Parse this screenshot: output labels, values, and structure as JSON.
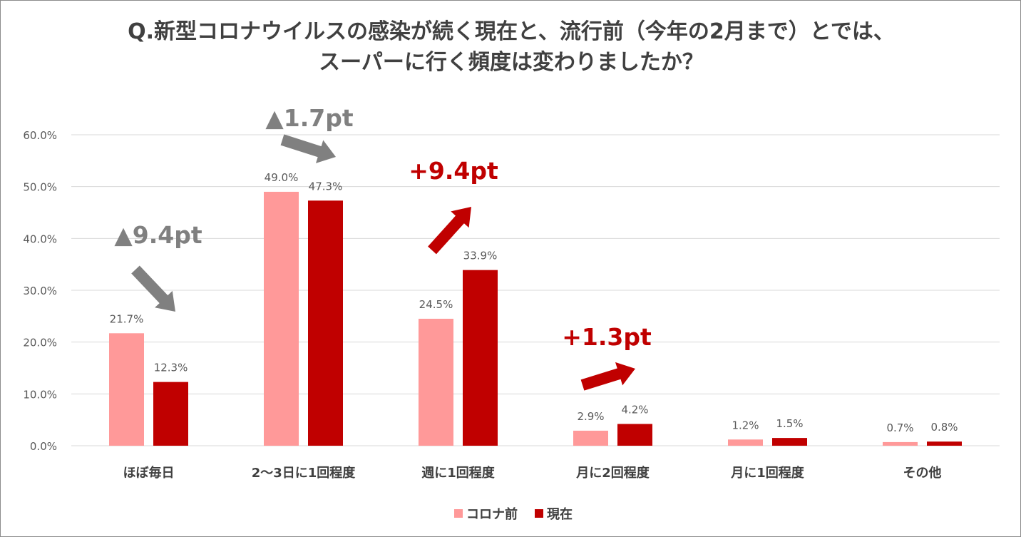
{
  "title_lines": [
    "Q.新型コロナウイルスの感染が続く現在と、流行前（今年の2月まで）とでは、",
    "スーパーに行く頻度は変わりましたか？"
  ],
  "colors": {
    "before": "#ff9999",
    "now": "#c00000",
    "decrease": "#808080",
    "increase": "#c00000",
    "grid": "#d9d9d9",
    "text": "#595959"
  },
  "chart_data": {
    "type": "bar",
    "categories": [
      "ほぼ毎日",
      "2〜3日に1回程度",
      "週に1回程度",
      "月に2回程度",
      "月に1回程度",
      "その他"
    ],
    "series": [
      {
        "name": "コロナ前",
        "values": [
          21.7,
          49.0,
          24.5,
          2.9,
          1.2,
          0.7
        ]
      },
      {
        "name": "現在",
        "values": [
          12.3,
          47.3,
          33.9,
          4.2,
          1.5,
          0.8
        ]
      }
    ],
    "data_labels": [
      [
        "21.7%",
        "49.0%",
        "24.5%",
        "2.9%",
        "1.2%",
        "0.7%"
      ],
      [
        "12.3%",
        "47.3%",
        "33.9%",
        "4.2%",
        "1.5%",
        "0.8%"
      ]
    ],
    "ylim": [
      0,
      60
    ],
    "y_ticks": [
      0,
      10,
      20,
      30,
      40,
      50,
      60
    ],
    "y_tick_labels": [
      "0.0%",
      "10.0%",
      "20.0%",
      "30.0%",
      "40.0%",
      "50.0%",
      "60.0%"
    ],
    "grid": true,
    "legend_position": "bottom",
    "legend": [
      "コロナ前",
      "現在"
    ],
    "annotations": [
      {
        "category": "ほぼ毎日",
        "text": "▲9.4pt",
        "direction": "down"
      },
      {
        "category": "2〜3日に1回程度",
        "text": "▲1.7pt",
        "direction": "down"
      },
      {
        "category": "週に1回程度",
        "text": "+9.4pt",
        "direction": "up"
      },
      {
        "category": "月に2回程度",
        "text": "+1.3pt",
        "direction": "up"
      }
    ]
  }
}
